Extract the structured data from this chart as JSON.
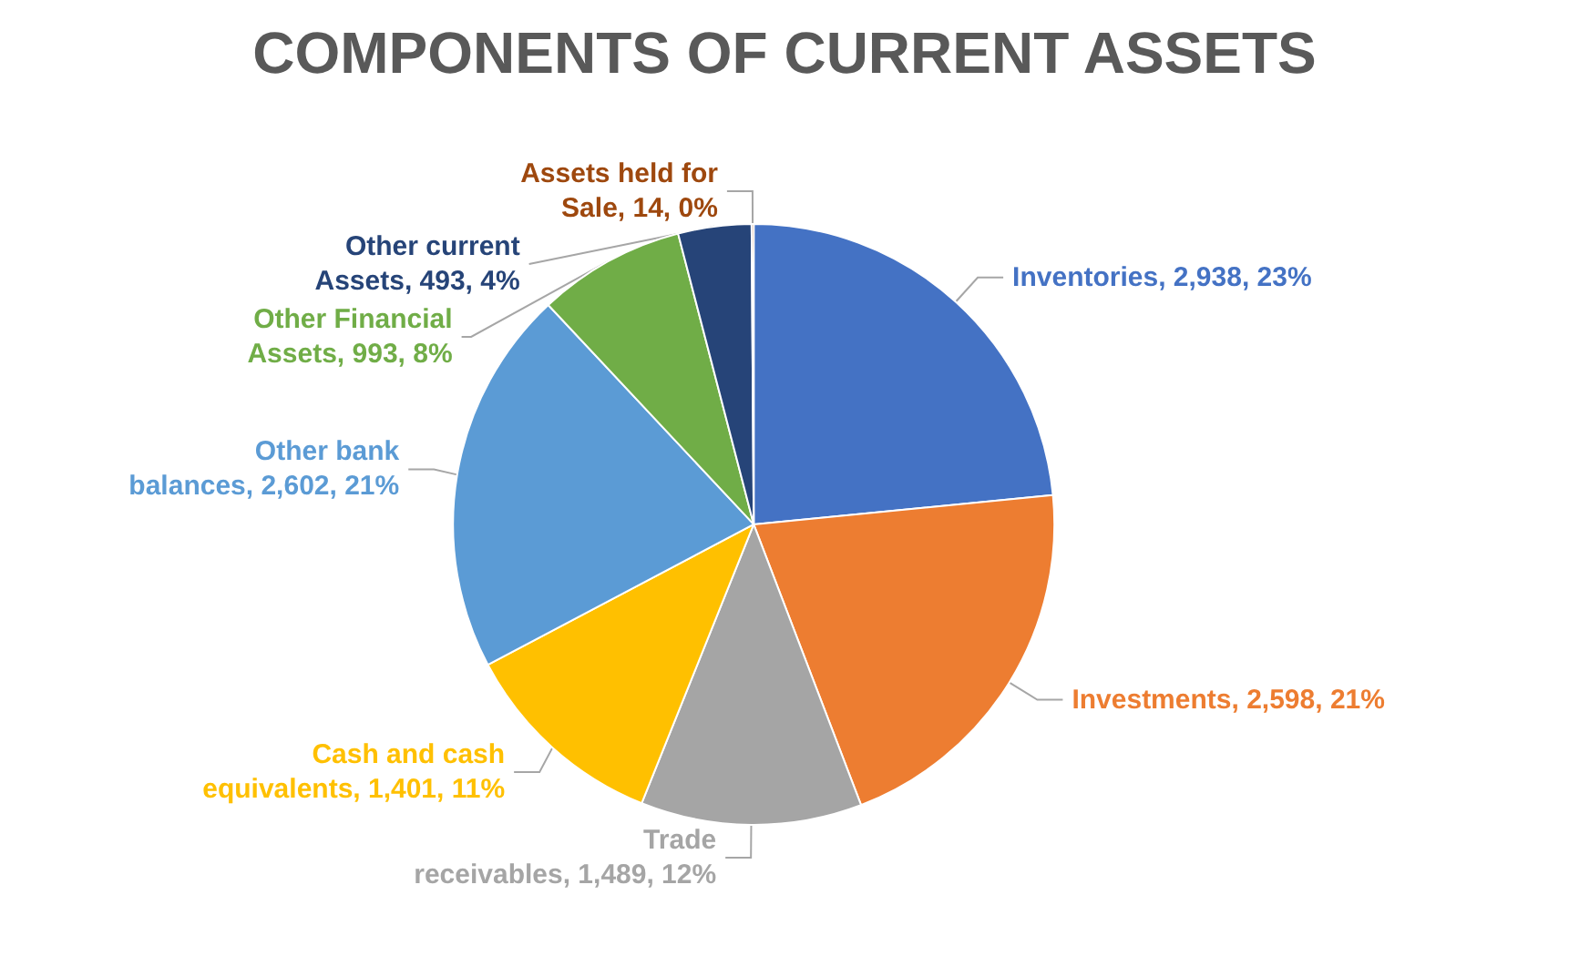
{
  "chart_data": {
    "type": "pie",
    "title": "COMPONENTS OF CURRENT ASSETS",
    "categories": [
      "Inventories",
      "Investments",
      "Trade receivables",
      "Cash and cash equivalents",
      "Other bank balances",
      "Other Financial Assets",
      "Other current Assets",
      "Assets held for Sale"
    ],
    "values": [
      2938,
      2598,
      1489,
      1401,
      2602,
      993,
      493,
      14
    ],
    "value_labels": [
      "2,938, 23%",
      "2,598, 21%",
      "1,489, 12%",
      "1,401, 11%",
      "2,602, 21%",
      "993, 8%",
      "493, 4%",
      "14, 0%"
    ],
    "colors": [
      "#4472c4",
      "#ed7d31",
      "#a5a5a5",
      "#ffc000",
      "#5b9bd5",
      "#70ad47",
      "#264478",
      "#9e480e"
    ],
    "legend": false
  }
}
